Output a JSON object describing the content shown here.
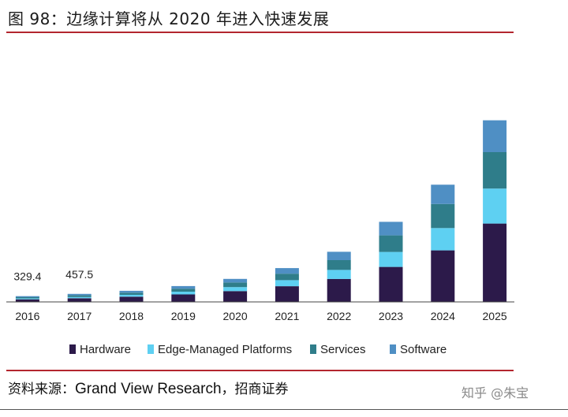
{
  "figure": {
    "title": "图 98：边缘计算将从 2020 年进入快速发展",
    "source_prefix": "资料来源：",
    "source_name": "Grand View Research",
    "source_suffix": "，招商证券",
    "watermark": "知乎 @朱宝"
  },
  "colors": {
    "Hardware": "#2c1a4a",
    "Edge-Managed Platforms": "#5ed0f2",
    "Services": "#2f7d8a",
    "Software": "#4f8fc4",
    "rule": "#b3262e"
  },
  "chart_data": {
    "type": "bar",
    "stacked": true,
    "title": "",
    "xlabel": "",
    "ylabel": "",
    "categories": [
      "2016",
      "2017",
      "2018",
      "2019",
      "2020",
      "2021",
      "2022",
      "2023",
      "2024",
      "2025"
    ],
    "series": [
      {
        "name": "Hardware",
        "values": [
          150,
          210,
          300,
          430,
          620,
          900,
          1320,
          2010,
          2960,
          4500
        ]
      },
      {
        "name": "Edge-Managed Platforms",
        "values": [
          50,
          70,
          110,
          160,
          230,
          350,
          520,
          860,
          1280,
          2010
        ]
      },
      {
        "name": "Services",
        "values": [
          70,
          100,
          120,
          170,
          260,
          370,
          560,
          950,
          1380,
          2090
        ]
      },
      {
        "name": "Software",
        "values": [
          60,
          80,
          110,
          150,
          210,
          320,
          480,
          780,
          1110,
          1830
        ]
      }
    ],
    "data_labels": [
      {
        "category": "2016",
        "label": "329.4"
      },
      {
        "category": "2017",
        "label": "457.5"
      }
    ],
    "ylim": [
      0,
      11000
    ],
    "grid": false,
    "legend_position": "bottom"
  }
}
